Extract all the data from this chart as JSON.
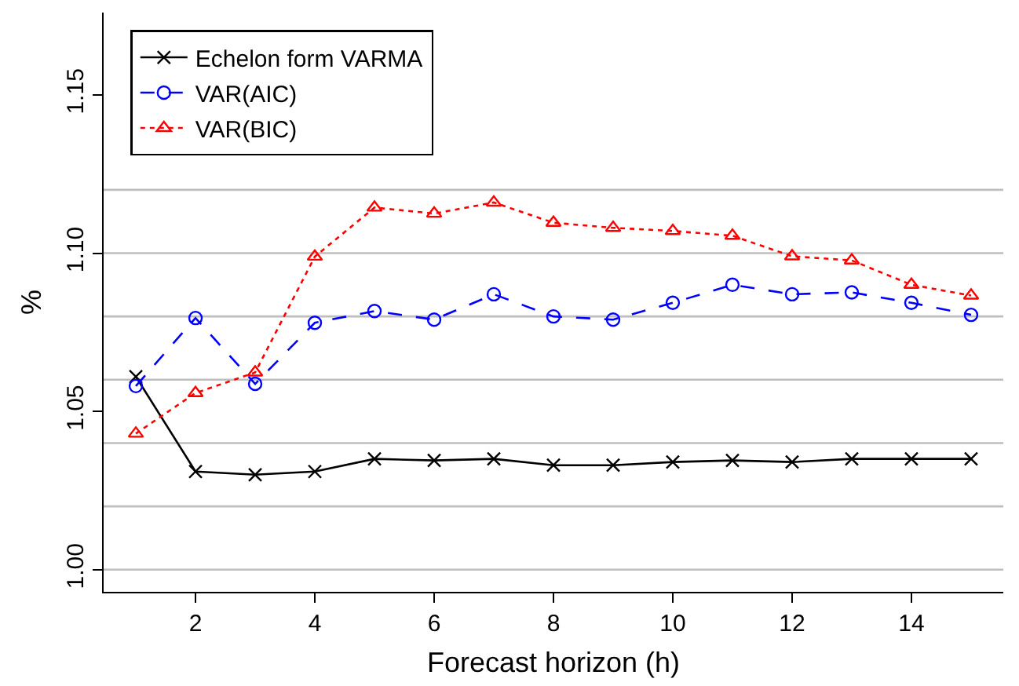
{
  "chart_data": {
    "type": "line",
    "xlabel": "Forecast horizon (h)",
    "ylabel": "%",
    "x": [
      1,
      2,
      3,
      4,
      5,
      6,
      7,
      8,
      9,
      10,
      11,
      12,
      13,
      14,
      15
    ],
    "series": [
      {
        "name": "Echelon form VARMA",
        "color": "#000000",
        "marker": "cross",
        "line_style": "solid",
        "values": [
          1.061,
          1.031,
          1.03,
          1.031,
          1.035,
          1.0345,
          1.035,
          1.033,
          1.033,
          1.034,
          1.0345,
          1.034,
          1.035,
          1.035,
          1.035
        ]
      },
      {
        "name": "VAR(AIC)",
        "color": "#0000ff",
        "marker": "circle",
        "line_style": "dashed",
        "values": [
          1.058,
          1.0795,
          1.0587,
          1.078,
          1.0817,
          1.079,
          1.087,
          1.08,
          1.079,
          1.0843,
          1.09,
          1.087,
          1.0876,
          1.0843,
          1.0805
        ]
      },
      {
        "name": "VAR(BIC)",
        "color": "#ff0000",
        "marker": "triangle",
        "line_style": "dotted",
        "values": [
          1.043,
          1.0558,
          1.0623,
          1.0989,
          1.1144,
          1.1125,
          1.116,
          1.1096,
          1.108,
          1.107,
          1.1055,
          1.099,
          1.0977,
          1.09,
          1.0866
        ]
      }
    ],
    "xlim": [
      0.46,
      15.54
    ],
    "xticks": [
      2,
      4,
      6,
      8,
      10,
      12,
      14
    ],
    "ylim": [
      0.993,
      1.176
    ],
    "yticks": [
      {
        "value": 1.0,
        "label": "1.00"
      },
      1.05,
      {
        "value": 1.1,
        "label": "1.10"
      },
      1.15
    ],
    "ref_lines": [
      {
        "axis": "y",
        "value": 1.0,
        "color": "#bebebe"
      },
      {
        "axis": "y",
        "value": 1.02,
        "color": "#bebebe"
      },
      {
        "axis": "y",
        "value": 1.04,
        "color": "#bebebe"
      },
      {
        "axis": "y",
        "value": 1.06,
        "color": "#bebebe"
      },
      {
        "axis": "y",
        "value": 1.08,
        "color": "#bebebe"
      },
      {
        "axis": "y",
        "value": 1.1,
        "color": "#bebebe"
      },
      {
        "axis": "y",
        "value": 1.12,
        "color": "#bebebe"
      }
    ],
    "legend": "top left"
  }
}
